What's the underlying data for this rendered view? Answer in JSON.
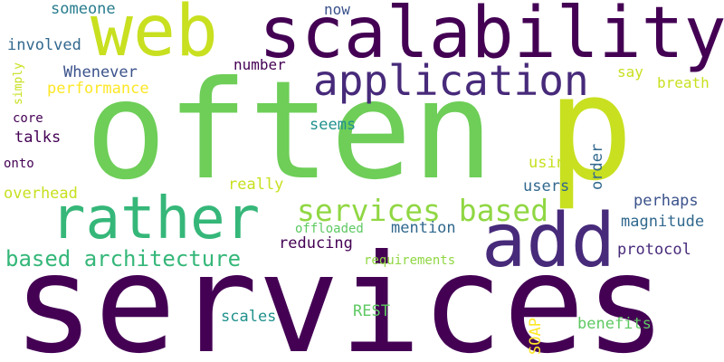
{
  "colors": {
    "background": "#ffffff",
    "dark_purple": "#440154",
    "purple": "#472a7a",
    "blue_purple": "#3b528b",
    "slate_blue": "#31688e",
    "teal_blue": "#287c8e",
    "teal": "#21918c",
    "green_teal": "#20a486",
    "green": "#35b779",
    "light_green": "#5ec962",
    "lime": "#90d743",
    "yellow_green": "#c8e020",
    "yellow": "#fde725"
  },
  "words": {
    "services": "services",
    "often": "often",
    "p": "p",
    "scalability": "scalability",
    "web": "web",
    "rather": "rather",
    "add": "add",
    "application": "application",
    "services_based": "services based",
    "based_architecture": "based architecture",
    "someone": "someone",
    "now": "now",
    "involved": "involved",
    "number": "number",
    "whenever": "Whenever",
    "say": "say",
    "performance": "performance",
    "breath": "breath",
    "simply": "simply",
    "core": "core",
    "seems": "seems",
    "talks": "talks",
    "order": "order",
    "onto": "onto",
    "using": "using",
    "really": "really",
    "users": "users",
    "overhead": "overhead",
    "perhaps": "perhaps",
    "offloaded": "offloaded",
    "mention": "mention",
    "magnitude": "magnitude",
    "reducing": "reducing",
    "protocol": "protocol",
    "requirements": "requirements",
    "rest": "REST",
    "scales": "scales",
    "soap": "SOAP",
    "benefits": "benefits"
  }
}
